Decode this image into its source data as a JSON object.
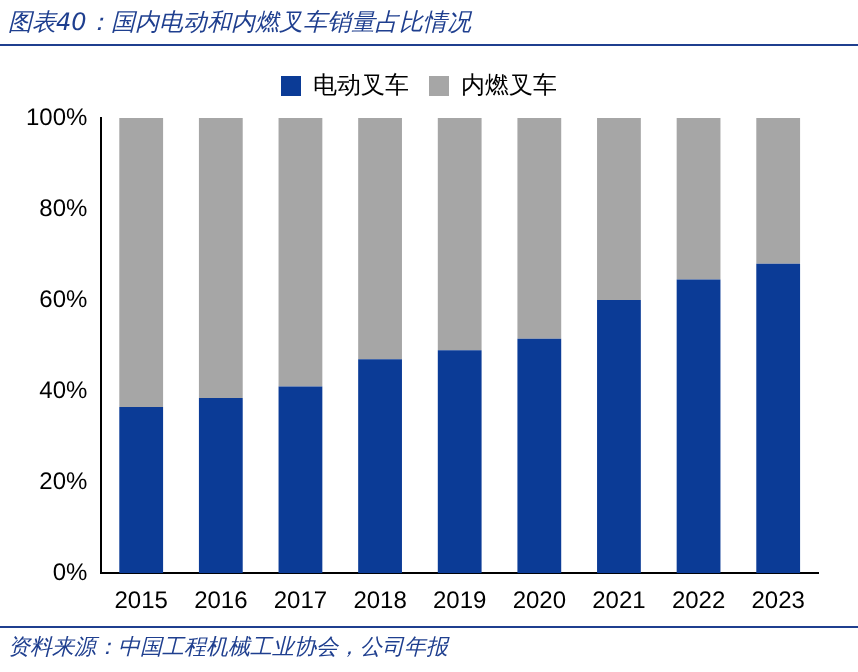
{
  "chart_data": {
    "type": "bar",
    "title": "图表40：国内电动和内燃叉车销量占比情况",
    "stacked": true,
    "legend": "top",
    "grid": false,
    "categories": [
      "2015",
      "2016",
      "2017",
      "2018",
      "2019",
      "2020",
      "2021",
      "2022",
      "2023"
    ],
    "series": [
      {
        "name": "电动叉车",
        "color": "#0b3b96",
        "values": [
          36.5,
          38.5,
          41,
          47,
          49,
          51.5,
          60,
          64.5,
          68
        ]
      },
      {
        "name": "内燃叉车",
        "color": "#a6a6a6",
        "values": [
          63.5,
          61.5,
          59,
          53,
          51,
          48.5,
          40,
          35.5,
          32
        ]
      }
    ],
    "ylim": [
      0,
      100
    ],
    "yticks": [
      {
        "value": 0,
        "label": "0%"
      },
      {
        "value": 20,
        "label": "20%"
      },
      {
        "value": 40,
        "label": "40%"
      },
      {
        "value": 60,
        "label": "60%"
      },
      {
        "value": 80,
        "label": "80%"
      },
      {
        "value": 100,
        "label": "100%"
      }
    ],
    "annotations": [
      "资料来源：中国工程机械工业协会，公司年报"
    ]
  }
}
